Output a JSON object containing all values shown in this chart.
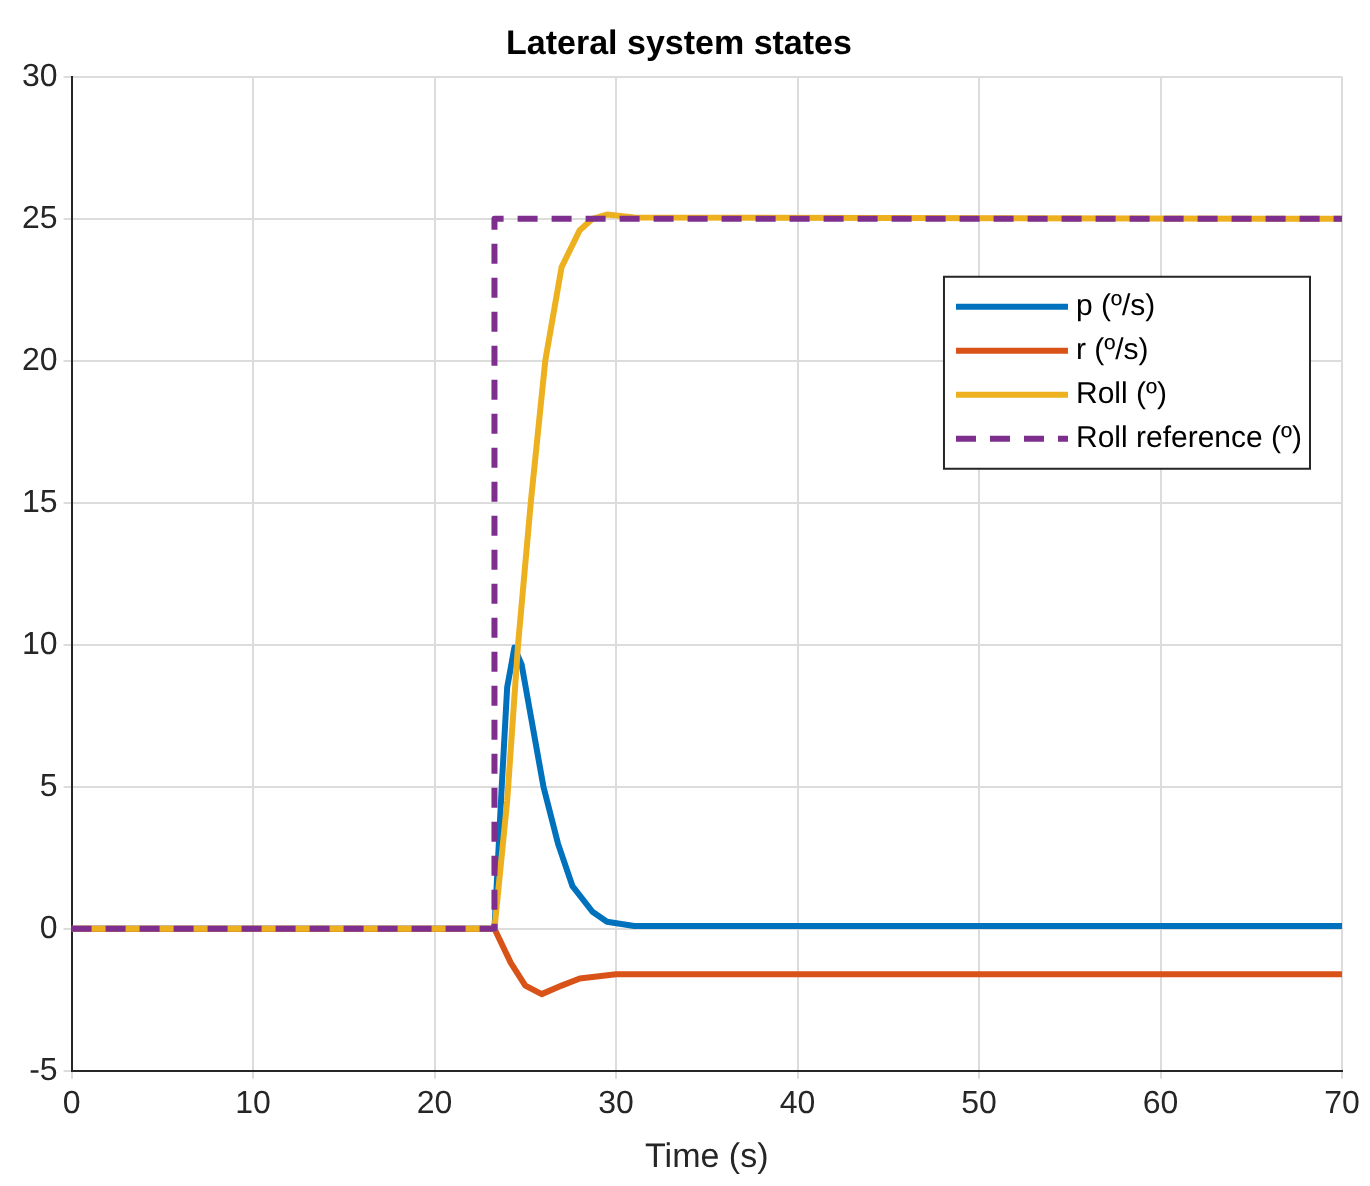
{
  "chart_data": {
    "type": "line",
    "title": "Lateral system states",
    "xlabel": "Time (s)",
    "xlim": [
      0,
      70
    ],
    "xticks": [
      0,
      10,
      20,
      30,
      40,
      50,
      60,
      70
    ],
    "ylim": [
      -5,
      30
    ],
    "yticks": [
      -5,
      0,
      5,
      10,
      15,
      20,
      25,
      30
    ],
    "grid": true,
    "legend": "top right",
    "marker": "none",
    "series": [
      {
        "name": "p (º/s)",
        "color": "#0072bd",
        "x": [
          0,
          23.3,
          23.7,
          24.0,
          24.4,
          24.8,
          25.3,
          26.0,
          26.8,
          27.6,
          28.7,
          29.5,
          31,
          35,
          70
        ],
        "values": [
          0,
          0,
          5,
          8.5,
          9.9,
          9.3,
          7.5,
          5.0,
          3.0,
          1.5,
          0.6,
          0.25,
          0.1,
          0.1,
          0.1
        ]
      },
      {
        "name": "r (º/s)",
        "color": "#d95319",
        "x": [
          0,
          23.3,
          24.2,
          25,
          25.9,
          27,
          28,
          30,
          70
        ],
        "values": [
          0,
          0,
          -1.2,
          -2.0,
          -2.3,
          -2.0,
          -1.75,
          -1.6,
          -1.6
        ]
      },
      {
        "name": "Roll (º)",
        "color": "#edb120",
        "x": [
          0,
          23.3,
          24,
          24.6,
          25.3,
          26.1,
          27,
          28,
          28.7,
          29.5,
          31,
          70
        ],
        "values": [
          0,
          0,
          4.5,
          10,
          15,
          20,
          23.3,
          24.6,
          25,
          25.15,
          25.05,
          25
        ]
      },
      {
        "name": "Roll reference (º)",
        "color": "#7e2f8e",
        "line_style": "dashed",
        "x": [
          0,
          23.3,
          23.3,
          70
        ],
        "values": [
          0,
          0,
          25,
          25
        ]
      }
    ]
  }
}
